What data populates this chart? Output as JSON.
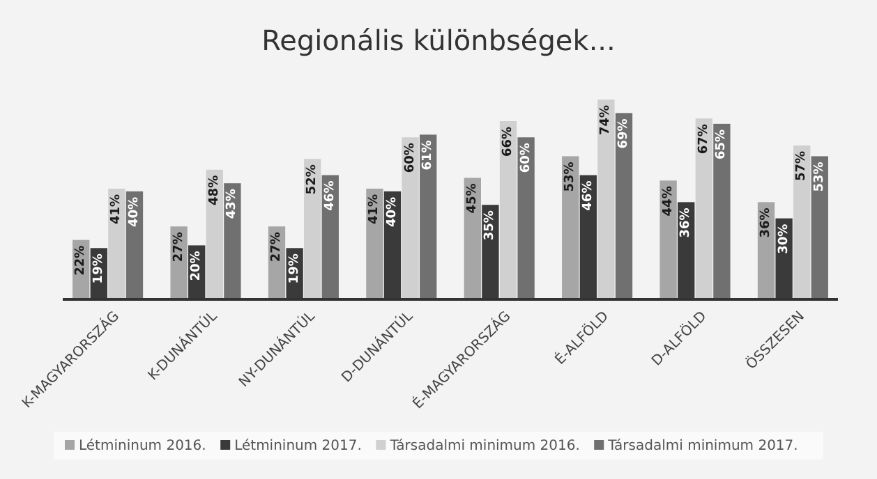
{
  "chart_data": {
    "type": "bar",
    "title": "Regionális különbségek...",
    "categories": [
      "K-MAGYARORSZÁG",
      "K-DUNÁNTÚL",
      "NY-DUNÁNTÚL",
      "D-DUNÁNTÚL",
      "É-MAGYARORSZÁG",
      "É-ALFÖLD",
      "D-ALFÖLD",
      "ÖSSZESEN"
    ],
    "series": [
      {
        "name": "Létmininum 2016.",
        "color": "#a6a6a6",
        "values": [
          22,
          27,
          27,
          41,
          45,
          53,
          44,
          36
        ],
        "value_labels": [
          "22%",
          "27%",
          "27%",
          "41%",
          "45%",
          "53%",
          "44%",
          "36%"
        ]
      },
      {
        "name": "Létmininum 2017.",
        "color": "#3a3a3a",
        "values": [
          19,
          20,
          19,
          40,
          35,
          46,
          36,
          30
        ],
        "value_labels": [
          "19%",
          "20%",
          "19%",
          "40%",
          "35%",
          "46%",
          "36%",
          "30%"
        ]
      },
      {
        "name": "Társadalmi minimum 2016.",
        "color": "#d0d0d0",
        "values": [
          41,
          48,
          52,
          60,
          66,
          74,
          67,
          57
        ],
        "value_labels": [
          "41%",
          "48%",
          "52%",
          "60%",
          "66%",
          "74%",
          "67%",
          "57%"
        ]
      },
      {
        "name": "Társadalmi minimum 2017.",
        "color": "#707070",
        "values": [
          40,
          43,
          46,
          61,
          60,
          69,
          65,
          53
        ],
        "value_labels": [
          "40%",
          "43%",
          "46%",
          "61%",
          "60%",
          "69%",
          "65%",
          "53%"
        ]
      }
    ],
    "tick_labels": "x",
    "legend": "bottom"
  }
}
